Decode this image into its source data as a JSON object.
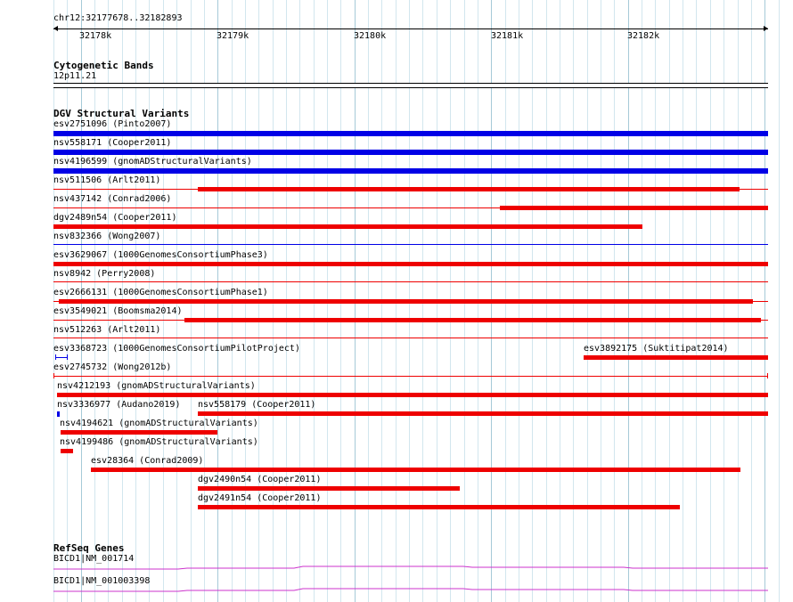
{
  "ruler": {
    "location": "chr12:32177678..32182893",
    "ticks": [
      "32178k",
      "32179k",
      "32180k",
      "32181k",
      "32182k"
    ]
  },
  "cytoband": {
    "title": "Cytogenetic Bands",
    "band": "12p11.21"
  },
  "dgv": {
    "title": "DGV Structural Variants",
    "features": [
      {
        "label": "esv2751096 (Pinto2007)",
        "color": "#0000e6"
      },
      {
        "label": "nsv558171 (Cooper2011)",
        "color": "#0000e6"
      },
      {
        "label": "nsv4196599 (gnomADStructuralVariants)",
        "color": "#0000e6"
      },
      {
        "label": "nsv511506 (Arlt2011)",
        "color": "#ee0000"
      },
      {
        "label": "nsv437142 (Conrad2006)",
        "color": "#ee0000"
      },
      {
        "label": "dgv2489n54 (Cooper2011)",
        "color": "#ee0000"
      },
      {
        "label": "nsv832366 (Wong2007)",
        "color": "#0000e6"
      },
      {
        "label": "esv3629067 (1000GenomesConsortiumPhase3)",
        "color": "#ee0000"
      },
      {
        "label": "nsv8942 (Perry2008)",
        "color": "#ee0000"
      },
      {
        "label": "esv2666131 (1000GenomesConsortiumPhase1)",
        "color": "#ee0000"
      },
      {
        "label": "esv3549021 (Boomsma2014)",
        "color": "#ee0000"
      },
      {
        "label": "nsv512263 (Arlt2011)",
        "color": "#ee0000"
      },
      {
        "label": "esv3368723 (1000GenomesConsortiumPilotProject)",
        "color": "#0000e6"
      },
      {
        "label": "esv3892175 (Suktitipat2014)",
        "color": "#ee0000"
      },
      {
        "label": "esv2745732 (Wong2012b)",
        "color": "#ee0000"
      },
      {
        "label": "nsv4212193 (gnomADStructuralVariants)",
        "color": "#ee0000"
      },
      {
        "label": "nsv3336977 (Audano2019)",
        "color": "#0000e6"
      },
      {
        "label": "nsv558179 (Cooper2011)",
        "color": "#ee0000"
      },
      {
        "label": "nsv4194621 (gnomADStructuralVariants)",
        "color": "#ee0000"
      },
      {
        "label": "nsv4199486 (gnomADStructuralVariants)",
        "color": "#ee0000"
      },
      {
        "label": "esv28364 (Conrad2009)",
        "color": "#ee0000"
      },
      {
        "label": "dgv2490n54 (Cooper2011)",
        "color": "#ee0000"
      },
      {
        "label": "dgv2491n54 (Cooper2011)",
        "color": "#ee0000"
      }
    ]
  },
  "refseq": {
    "title": "RefSeq Genes",
    "genes": [
      {
        "label": "BICD1|NM_001714",
        "color": "#cc33cc"
      },
      {
        "label": "BICD1|NM_001003398",
        "color": "#cc33cc"
      }
    ]
  }
}
